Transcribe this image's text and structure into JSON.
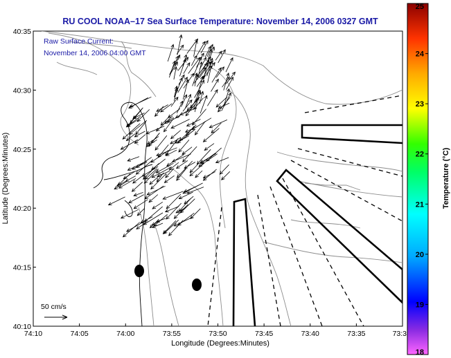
{
  "title": "RU COOL  NOAA–17  Sea Surface Temperature:  November 14, 2006 0327 GMT",
  "annotation": {
    "line1": "Raw Surface Current:",
    "line2": "November 14, 2006 04:00 GMT"
  },
  "axes": {
    "xlabel": "Longitude (Degrees:Minutes)",
    "ylabel": "Latitude (Degrees:Minutes)",
    "xticks": [
      "74:10",
      "74:05",
      "74:00",
      "73:55",
      "73:50",
      "73:45",
      "73:40",
      "73:35",
      "73:3"
    ],
    "yticks": [
      "40:35",
      "40:30",
      "40:25",
      "40:20",
      "40:15",
      "40:10"
    ]
  },
  "colorbar": {
    "label": "Temperature (°C)",
    "ticks": [
      "25",
      "24",
      "23",
      "22",
      "21",
      "20",
      "19",
      "18"
    ],
    "min": 18,
    "max": 25
  },
  "scale": {
    "label": "50 cm/s"
  }
}
